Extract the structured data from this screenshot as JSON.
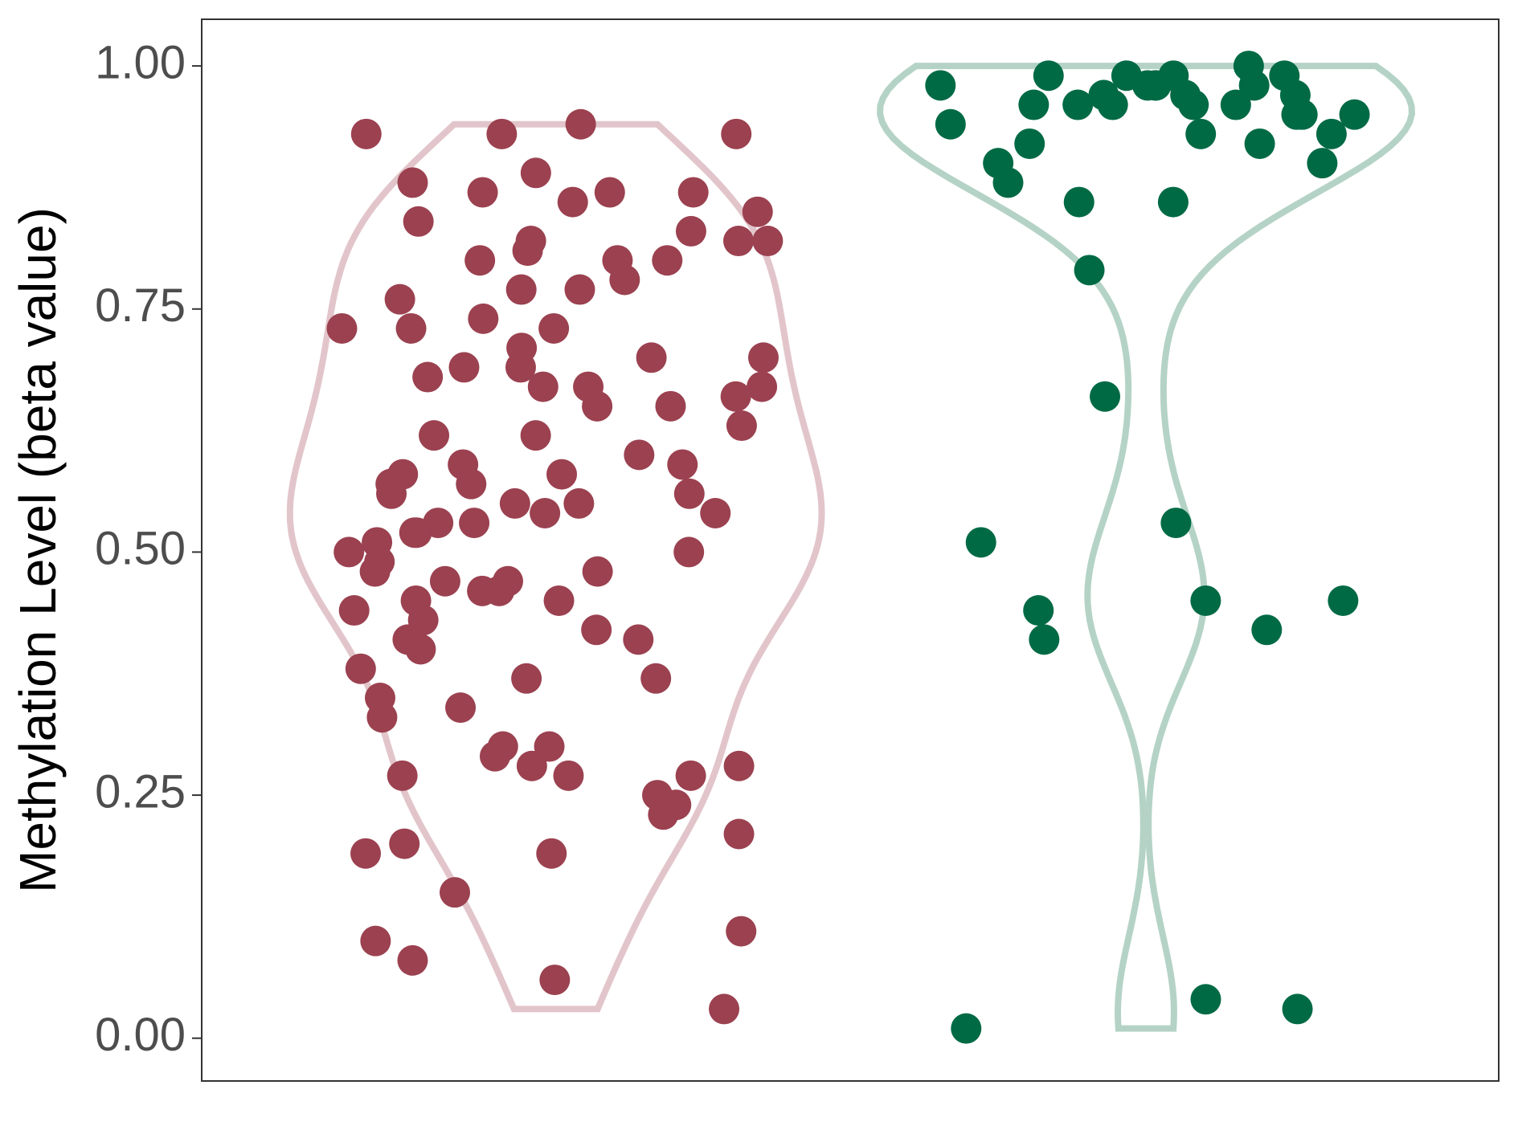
{
  "chart_data": {
    "type": "violin",
    "y_label": "Methylation Level (beta value)",
    "ylim": [
      -0.044,
      1.048
    ],
    "yticks": [
      {
        "value": 0,
        "label": "0.00"
      },
      {
        "value": 0.25,
        "label": "0.25"
      },
      {
        "value": 0.5,
        "label": "0.50"
      },
      {
        "value": 0.75,
        "label": "0.75"
      },
      {
        "value": 1,
        "label": "1.00"
      }
    ],
    "groups": [
      {
        "color": "#9b4150",
        "outline_color": "#e2c5ca",
        "values": [
          0.93,
          0.93,
          0.94,
          0.93,
          0.89,
          0.87,
          0.88,
          0.87,
          0.86,
          0.85,
          0.87,
          0.84,
          0.82,
          0.83,
          0.82,
          0.82,
          0.81,
          0.8,
          0.8,
          0.8,
          0.77,
          0.78,
          0.77,
          0.76,
          0.74,
          0.73,
          0.73,
          0.73,
          0.71,
          0.7,
          0.7,
          0.69,
          0.69,
          0.68,
          0.67,
          0.67,
          0.66,
          0.67,
          0.65,
          0.65,
          0.63,
          0.62,
          0.62,
          0.6,
          0.59,
          0.59,
          0.58,
          0.58,
          0.57,
          0.57,
          0.56,
          0.56,
          0.55,
          0.55,
          0.54,
          0.54,
          0.53,
          0.53,
          0.52,
          0.52,
          0.51,
          0.5,
          0.5,
          0.49,
          0.48,
          0.48,
          0.47,
          0.47,
          0.46,
          0.46,
          0.45,
          0.45,
          0.44,
          0.43,
          0.42,
          0.41,
          0.41,
          0.4,
          0.38,
          0.37,
          0.37,
          0.35,
          0.34,
          0.33,
          0.3,
          0.3,
          0.29,
          0.28,
          0.28,
          0.27,
          0.27,
          0.27,
          0.25,
          0.24,
          0.23,
          0.21,
          0.2,
          0.19,
          0.19,
          0.15,
          0.11,
          0.1,
          0.08,
          0.06,
          0.03
        ]
      },
      {
        "color": "#006a45",
        "outline_color": "#b4d3c6",
        "values": [
          1.0,
          0.99,
          0.99,
          0.99,
          0.99,
          0.98,
          0.98,
          0.98,
          0.98,
          0.98,
          0.97,
          0.96,
          0.97,
          0.97,
          0.96,
          0.96,
          0.96,
          0.95,
          0.96,
          0.95,
          0.95,
          0.94,
          0.93,
          0.93,
          0.92,
          0.92,
          0.9,
          0.9,
          0.88,
          0.86,
          0.86,
          0.79,
          0.66,
          0.53,
          0.51,
          0.45,
          0.45,
          0.44,
          0.41,
          0.42,
          0.03,
          0.04,
          0.01
        ]
      }
    ]
  }
}
